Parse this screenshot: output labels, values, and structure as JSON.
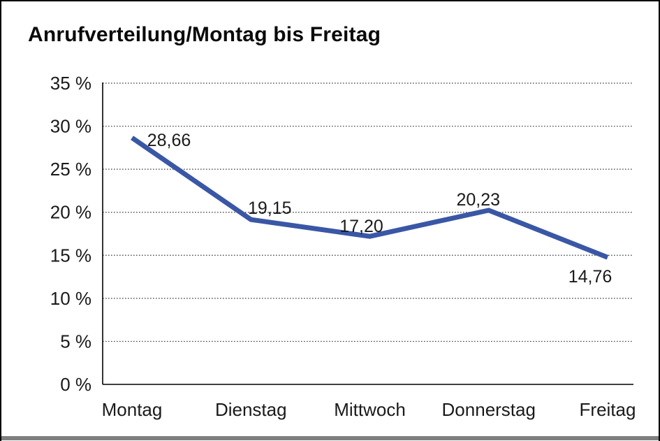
{
  "window": {
    "title": "Anrufverteilung/Montag bis Freitag"
  },
  "chart_data": {
    "type": "line",
    "title": "Anrufverteilung/Montag bis Freitag",
    "categories": [
      "Montag",
      "Dienstag",
      "Mittwoch",
      "Donnerstag",
      "Freitag"
    ],
    "series": [
      {
        "name": "Anrufverteilung",
        "values": [
          28.66,
          19.15,
          17.2,
          20.23,
          14.76
        ]
      }
    ],
    "data_labels": [
      "28,66",
      "19,15",
      "17,20",
      "20,23",
      "14,76"
    ],
    "y_ticks": [
      0,
      5,
      10,
      15,
      20,
      25,
      30,
      35
    ],
    "y_tick_labels": [
      "0 %",
      "5 %",
      "10 %",
      "15 %",
      "20 %",
      "25 %",
      "30 %",
      "35 %"
    ],
    "ylim": [
      0,
      35
    ],
    "xlabel": "",
    "ylabel": "",
    "grid": "horizontal-dotted",
    "legend_position": "none",
    "line_color": "#3A57A6"
  },
  "colors": {
    "line": "#3A57A6",
    "grid": "#3c3c3c",
    "axis": "#000000",
    "text": "#1a1a1a",
    "frame_border": "#000000",
    "bottom_bar": "#7f7f7f"
  }
}
